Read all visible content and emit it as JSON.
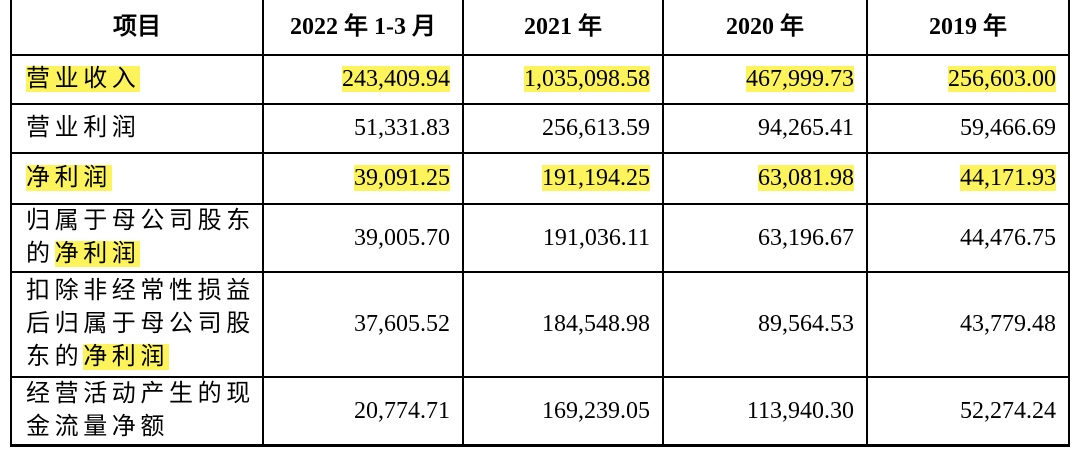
{
  "table": {
    "header": [
      "项目",
      "2022 年 1-3 月",
      "2021 年",
      "2020 年",
      "2019 年"
    ],
    "rows": [
      {
        "label": [
          {
            "text": "营业收入",
            "highlight": true
          }
        ],
        "values": [
          "243,409.94",
          "1,035,098.58",
          "467,999.73",
          "256,603.00"
        ],
        "highlight": true
      },
      {
        "label": [
          {
            "text": "营业利润"
          }
        ],
        "values": [
          "51,331.83",
          "256,613.59",
          "94,265.41",
          "59,466.69"
        ]
      },
      {
        "label": [
          {
            "text": "净利润",
            "highlight": true
          }
        ],
        "values": [
          "39,091.25",
          "191,194.25",
          "63,081.98",
          "44,171.93"
        ],
        "highlight": true
      },
      {
        "label": [
          {
            "text": "归属于母公司股东的"
          },
          {
            "text": "净利润",
            "highlight": true
          }
        ],
        "values": [
          "39,005.70",
          "191,036.11",
          "63,196.67",
          "44,476.75"
        ]
      },
      {
        "label": [
          {
            "text": "扣除非经常性损益后归属于母公司股东的"
          },
          {
            "text": "净利润",
            "highlight": true
          }
        ],
        "values": [
          "37,605.52",
          "184,548.98",
          "89,564.53",
          "43,779.48"
        ]
      },
      {
        "label": [
          {
            "text": "经营活动产生的现金流量净额"
          }
        ],
        "values": [
          "20,774.71",
          "169,239.05",
          "113,940.30",
          "52,274.24"
        ]
      }
    ]
  }
}
